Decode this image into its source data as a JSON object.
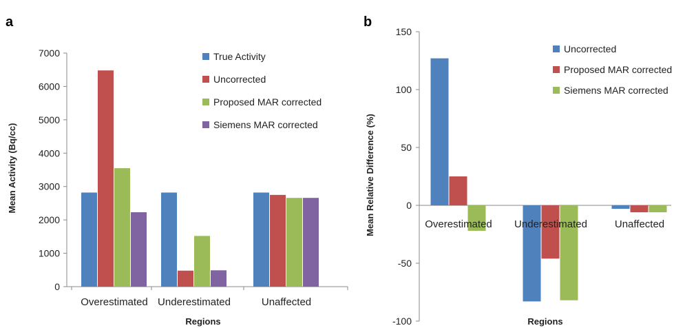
{
  "chart_data": [
    {
      "panel": "a",
      "type": "bar",
      "categories": [
        "Overestimated",
        "Underestimated",
        "Unaffected"
      ],
      "xlabel": "Regions",
      "ylabel": "Mean Activity (Bq/cc)",
      "ylim": [
        0,
        7000
      ],
      "yticks": [
        0,
        1000,
        2000,
        3000,
        4000,
        5000,
        6000,
        7000
      ],
      "grid": false,
      "legend": "top-right",
      "series": [
        {
          "name": "True Activity",
          "color": "#4f81bd",
          "values": [
            2820,
            2820,
            2820
          ]
        },
        {
          "name": "Uncorrected",
          "color": "#c0504d",
          "values": [
            6480,
            480,
            2750
          ]
        },
        {
          "name": "Proposed MAR corrected",
          "color": "#9bbb59",
          "values": [
            3550,
            1520,
            2660
          ]
        },
        {
          "name": "Siemens MAR corrected",
          "color": "#8064a2",
          "values": [
            2230,
            490,
            2660
          ]
        }
      ]
    },
    {
      "panel": "b",
      "type": "bar",
      "categories": [
        "Overestimated",
        "Underestimated",
        "Unaffected"
      ],
      "xlabel": "Regions",
      "ylabel": "Mean Relative Difference (%)",
      "ylim": [
        -100,
        150
      ],
      "yticks": [
        -100,
        -50,
        0,
        50,
        100,
        150
      ],
      "grid": false,
      "legend": "top-right",
      "series": [
        {
          "name": "Uncorrected",
          "color": "#4f81bd",
          "values": [
            127,
            -83,
            -3
          ]
        },
        {
          "name": "Proposed MAR corrected",
          "color": "#c0504d",
          "values": [
            25,
            -46,
            -6
          ]
        },
        {
          "name": "Siemens MAR corrected",
          "color": "#9bbb59",
          "values": [
            -22,
            -82,
            -6
          ]
        }
      ]
    }
  ]
}
